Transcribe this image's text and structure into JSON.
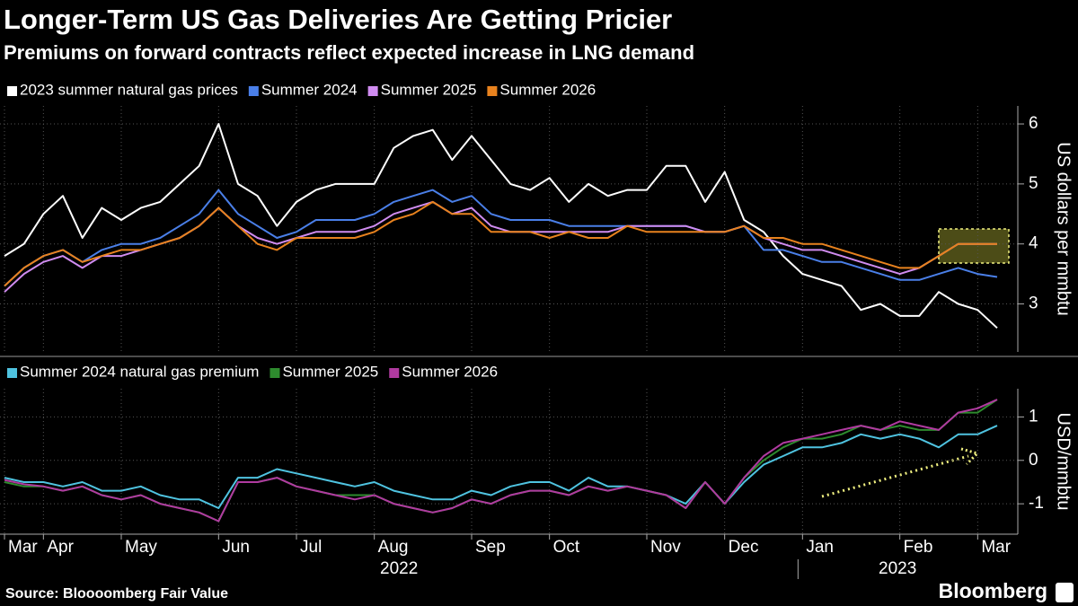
{
  "title": "Longer-Term US Gas Deliveries Are Getting Pricier",
  "subtitle": "Premiums on forward contracts reflect expected increase in LNG demand",
  "source": "Source: Bloooomberg Fair Value",
  "brand": "Bloomberg",
  "chart_data": [
    {
      "type": "line",
      "y_label": "US dollars per mmbtu",
      "ylim": [
        2.2,
        6.3
      ],
      "yticks": [
        3,
        4,
        5,
        6
      ],
      "grid": true,
      "legend": "top-left",
      "series": [
        {
          "name": "2023 summer natural gas prices",
          "color": "#ffffff",
          "values": [
            3.8,
            4.0,
            4.5,
            4.8,
            4.1,
            4.6,
            4.4,
            4.6,
            4.7,
            5.0,
            5.3,
            6.0,
            5.0,
            4.8,
            4.3,
            4.7,
            4.9,
            5.0,
            5.0,
            5.0,
            5.6,
            5.8,
            5.9,
            5.4,
            5.8,
            5.4,
            5.0,
            4.9,
            5.1,
            4.7,
            5.0,
            4.8,
            4.9,
            4.9,
            5.3,
            5.3,
            4.7,
            5.2,
            4.4,
            4.2,
            3.8,
            3.5,
            3.4,
            3.3,
            2.9,
            3.0,
            2.8,
            2.8,
            3.2,
            3.0,
            2.9,
            2.6
          ]
        },
        {
          "name": "Summer 2024",
          "color": "#4a7fe8",
          "values": [
            3.3,
            3.6,
            3.8,
            3.9,
            3.7,
            3.9,
            4.0,
            4.0,
            4.1,
            4.3,
            4.5,
            4.9,
            4.5,
            4.3,
            4.1,
            4.2,
            4.4,
            4.4,
            4.4,
            4.5,
            4.7,
            4.8,
            4.9,
            4.7,
            4.8,
            4.5,
            4.4,
            4.4,
            4.4,
            4.3,
            4.3,
            4.3,
            4.3,
            4.3,
            4.3,
            4.3,
            4.2,
            4.2,
            4.3,
            3.9,
            3.9,
            3.8,
            3.7,
            3.7,
            3.6,
            3.5,
            3.4,
            3.4,
            3.5,
            3.6,
            3.5,
            3.45
          ]
        },
        {
          "name": "Summer 2025",
          "color": "#d08cf0",
          "values": [
            3.2,
            3.5,
            3.7,
            3.8,
            3.6,
            3.8,
            3.8,
            3.9,
            4.0,
            4.1,
            4.3,
            4.6,
            4.3,
            4.1,
            4.0,
            4.1,
            4.2,
            4.2,
            4.2,
            4.3,
            4.5,
            4.6,
            4.7,
            4.5,
            4.6,
            4.3,
            4.2,
            4.2,
            4.2,
            4.2,
            4.2,
            4.2,
            4.3,
            4.3,
            4.3,
            4.3,
            4.2,
            4.2,
            4.3,
            4.1,
            4.0,
            3.9,
            3.9,
            3.8,
            3.7,
            3.6,
            3.5,
            3.6,
            3.8,
            4.0,
            4.0,
            4.0
          ]
        },
        {
          "name": "Summer 2026",
          "color": "#e8821e",
          "values": [
            3.3,
            3.6,
            3.8,
            3.9,
            3.7,
            3.8,
            3.9,
            3.9,
            4.0,
            4.1,
            4.3,
            4.6,
            4.3,
            4.0,
            3.9,
            4.1,
            4.1,
            4.1,
            4.1,
            4.2,
            4.4,
            4.5,
            4.7,
            4.5,
            4.5,
            4.2,
            4.2,
            4.2,
            4.1,
            4.2,
            4.1,
            4.1,
            4.3,
            4.2,
            4.2,
            4.2,
            4.2,
            4.2,
            4.3,
            4.1,
            4.1,
            4.0,
            4.0,
            3.9,
            3.8,
            3.7,
            3.6,
            3.6,
            3.8,
            4.0,
            4.0,
            4.0
          ]
        }
      ]
    },
    {
      "type": "line",
      "y_label": "USD/mmbtu",
      "ylim": [
        -1.7,
        1.65
      ],
      "yticks": [
        -1,
        0,
        1
      ],
      "grid": true,
      "legend": "top-left",
      "categories": [
        "Mar",
        null,
        "Apr",
        null,
        null,
        null,
        "May",
        null,
        null,
        null,
        null,
        "Jun",
        null,
        null,
        null,
        "Jul",
        null,
        null,
        null,
        "Aug",
        null,
        null,
        null,
        null,
        "Sep",
        null,
        null,
        null,
        "Oct",
        null,
        null,
        null,
        null,
        "Nov",
        null,
        null,
        null,
        "Dec",
        null,
        null,
        null,
        "Jan",
        null,
        null,
        null,
        null,
        "Feb",
        null,
        null,
        null,
        "Mar",
        null
      ],
      "year_labels": [
        "2022",
        "2023"
      ],
      "series": [
        {
          "name": "Summer 2024 natural gas premium",
          "color": "#4fc3e0",
          "values": [
            -0.4,
            -0.5,
            -0.5,
            -0.6,
            -0.5,
            -0.7,
            -0.7,
            -0.6,
            -0.8,
            -0.9,
            -0.9,
            -1.1,
            -0.4,
            -0.4,
            -0.2,
            -0.3,
            -0.4,
            -0.5,
            -0.6,
            -0.5,
            -0.7,
            -0.8,
            -0.9,
            -0.9,
            -0.7,
            -0.8,
            -0.6,
            -0.5,
            -0.5,
            -0.7,
            -0.4,
            -0.6,
            -0.6,
            -0.7,
            -0.8,
            -1.0,
            -0.5,
            -1.0,
            -0.5,
            -0.1,
            0.1,
            0.3,
            0.3,
            0.4,
            0.6,
            0.5,
            0.6,
            0.5,
            0.3,
            0.6,
            0.6,
            0.8
          ]
        },
        {
          "name": "Summer 2025",
          "color": "#2e8b2e",
          "values": [
            -0.5,
            -0.6,
            -0.6,
            -0.7,
            -0.6,
            -0.8,
            -0.9,
            -0.8,
            -1.0,
            -1.1,
            -1.2,
            -1.4,
            -0.5,
            -0.5,
            -0.4,
            -0.6,
            -0.7,
            -0.8,
            -0.8,
            -0.8,
            -1.0,
            -1.1,
            -1.2,
            -1.1,
            -0.9,
            -1.0,
            -0.8,
            -0.7,
            -0.7,
            -0.8,
            -0.6,
            -0.7,
            -0.6,
            -0.7,
            -0.8,
            -1.1,
            -0.5,
            -1.0,
            -0.4,
            0.0,
            0.3,
            0.5,
            0.5,
            0.6,
            0.8,
            0.7,
            0.8,
            0.7,
            0.7,
            1.1,
            1.1,
            1.4
          ]
        },
        {
          "name": "Summer 2026",
          "color": "#b03aa0",
          "values": [
            -0.45,
            -0.55,
            -0.6,
            -0.7,
            -0.6,
            -0.8,
            -0.9,
            -0.8,
            -1.0,
            -1.1,
            -1.2,
            -1.4,
            -0.5,
            -0.5,
            -0.4,
            -0.6,
            -0.7,
            -0.8,
            -0.9,
            -0.8,
            -1.0,
            -1.1,
            -1.2,
            -1.1,
            -0.9,
            -1.0,
            -0.8,
            -0.7,
            -0.7,
            -0.8,
            -0.6,
            -0.7,
            -0.6,
            -0.7,
            -0.8,
            -1.1,
            -0.5,
            -1.0,
            -0.4,
            0.1,
            0.4,
            0.5,
            0.6,
            0.7,
            0.8,
            0.7,
            0.9,
            0.8,
            0.7,
            1.1,
            1.2,
            1.4
          ]
        }
      ]
    }
  ]
}
